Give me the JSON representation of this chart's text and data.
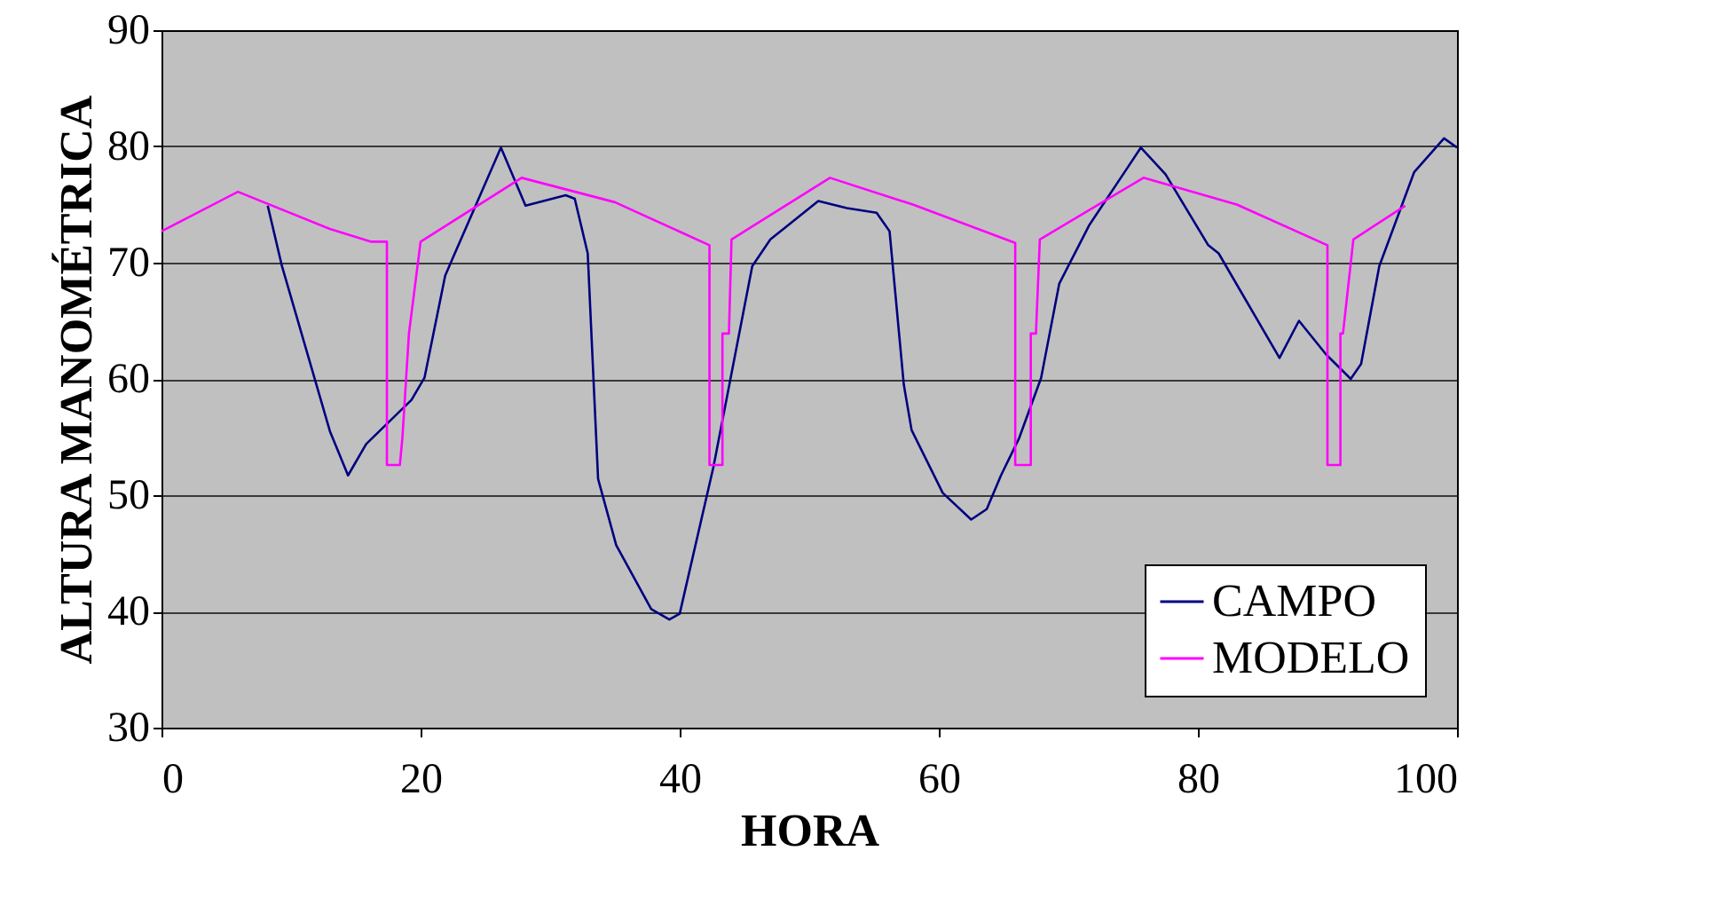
{
  "chart_data": {
    "type": "line",
    "xlabel": "HORA",
    "ylabel": "ALTURA MANOMÉTRICA",
    "xlim": [
      0,
      100
    ],
    "ylim": [
      30,
      90
    ],
    "xticks": [
      0,
      20,
      40,
      60,
      80,
      100
    ],
    "yticks": [
      30,
      40,
      50,
      60,
      70,
      80,
      90
    ],
    "grid": "y",
    "legend": "bottom right",
    "marker": "none",
    "line_style": "solid",
    "series": [
      {
        "name": "CAMPO",
        "color": "#000080",
        "x": [
          8.2,
          9.3,
          13,
          14.4,
          15.8,
          19.3,
          20.3,
          21.9,
          26.2,
          28.1,
          31.2,
          31.9,
          32.9,
          33.7,
          35.1,
          37.8,
          39.2,
          40,
          42.6,
          45.6,
          47,
          50.7,
          52.9,
          55.2,
          56.2,
          57.3,
          57.9,
          60.3,
          62.5,
          63.7,
          64.8,
          66.2,
          67.9,
          69.3,
          71.6,
          75.6,
          77.5,
          80.8,
          81.6,
          86.3,
          87.8,
          89.9,
          91.8,
          92.6,
          94,
          96.7,
          99,
          100
        ],
        "values": [
          74.9,
          69.7,
          55.5,
          51.7,
          54.4,
          58.2,
          60.1,
          68.9,
          79.9,
          74.9,
          75.8,
          75.5,
          70.8,
          51.4,
          45.7,
          40.2,
          39.3,
          39.8,
          52.4,
          69.7,
          72,
          75.3,
          74.7,
          74.3,
          72.7,
          59.5,
          55.6,
          50.2,
          47.9,
          48.8,
          51.7,
          54.9,
          60.1,
          68.2,
          73.2,
          79.9,
          77.6,
          71.5,
          70.8,
          61.8,
          65,
          62.1,
          60,
          61.3,
          69.7,
          77.8,
          80.7,
          79.9
        ]
      },
      {
        "name": "MODELO",
        "color": "#ff00ff",
        "x": [
          0,
          5.9,
          13,
          16.2,
          17.4,
          17.4,
          18.4,
          18.6,
          19.1,
          20,
          27.8,
          35,
          42.3,
          42.3,
          43.3,
          43.3,
          43.8,
          44,
          51.6,
          58,
          65.9,
          65.9,
          67.1,
          67.1,
          67.5,
          67.8,
          75.8,
          83,
          90,
          90,
          91,
          91,
          91.2,
          92,
          96
        ],
        "values": [
          72.7,
          76.1,
          72.9,
          71.8,
          71.8,
          52.6,
          52.6,
          55,
          63.9,
          71.8,
          77.3,
          75.2,
          71.5,
          52.6,
          52.6,
          63.9,
          63.9,
          72,
          77.3,
          75,
          71.7,
          52.6,
          52.6,
          63.9,
          63.9,
          72,
          77.3,
          75,
          71.5,
          52.6,
          52.6,
          63.9,
          63.9,
          72,
          74.9
        ]
      }
    ]
  }
}
